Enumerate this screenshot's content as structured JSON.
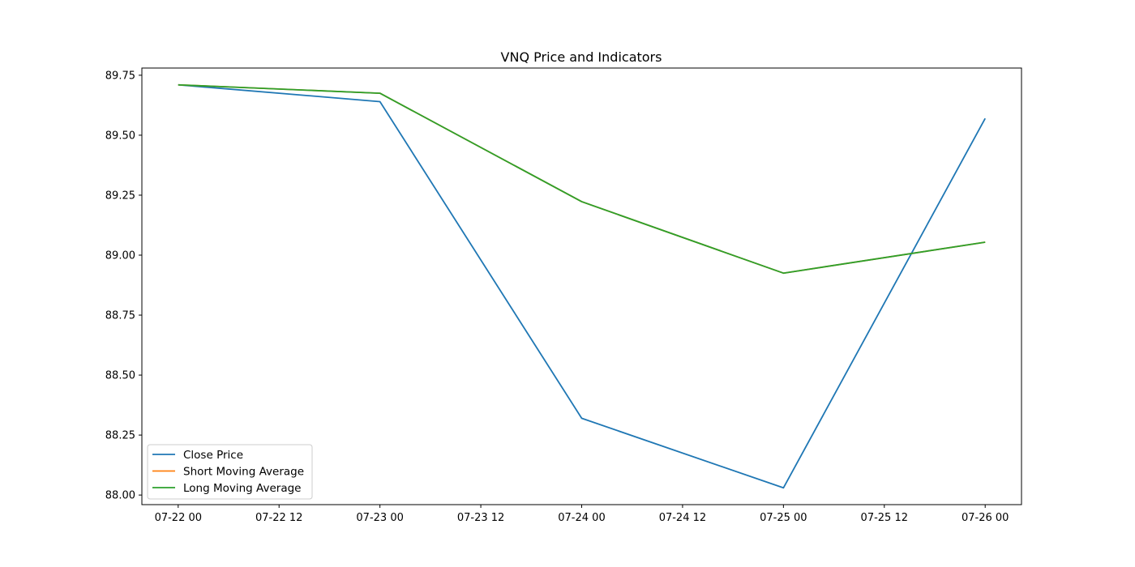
{
  "chart_data": {
    "type": "line",
    "title": "VNQ Price and Indicators",
    "xlabel": "",
    "ylabel": "",
    "x": [
      "2024-07-22",
      "2024-07-23",
      "2024-07-24",
      "2024-07-25",
      "2024-07-26"
    ],
    "x_ticks": [
      "07-22 00",
      "07-22 12",
      "07-23 00",
      "07-23 12",
      "07-24 00",
      "07-24 12",
      "07-25 00",
      "07-25 12",
      "07-26 00"
    ],
    "y_ticks": [
      "88.00",
      "88.25",
      "88.50",
      "88.75",
      "89.00",
      "89.25",
      "89.50",
      "89.75"
    ],
    "ylim": [
      87.96,
      89.78
    ],
    "grid": false,
    "legend_position": "lower-left",
    "series": [
      {
        "name": "Close Price",
        "color": "#1f77b4",
        "values": [
          89.71,
          89.64,
          88.32,
          88.03,
          89.57
        ]
      },
      {
        "name": "Short Moving Average",
        "color": "#ff7f0e",
        "values": [
          89.71,
          89.675,
          89.223,
          88.925,
          89.054
        ]
      },
      {
        "name": "Long Moving Average",
        "color": "#2ca02c",
        "values": [
          89.71,
          89.675,
          89.223,
          88.925,
          89.054
        ]
      }
    ]
  }
}
